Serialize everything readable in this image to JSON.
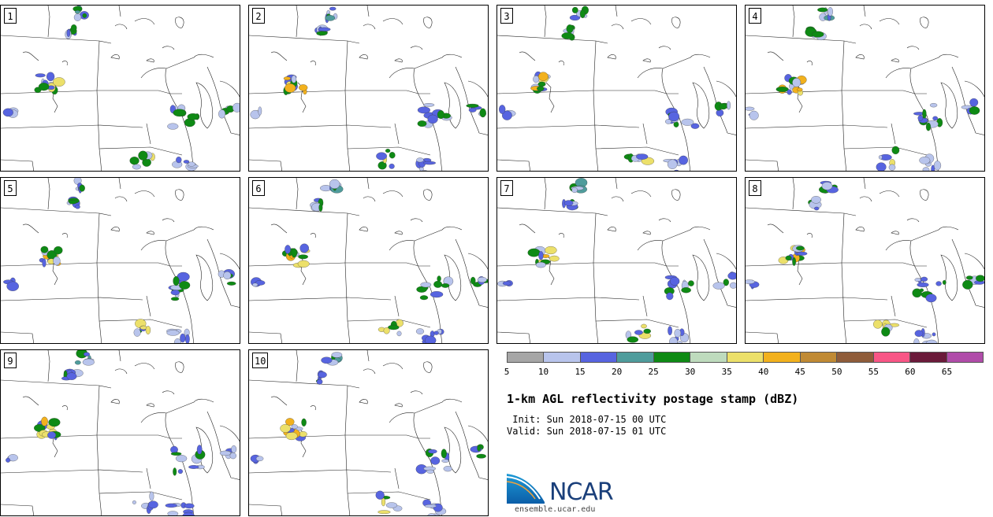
{
  "members": [
    {
      "label": "1"
    },
    {
      "label": "2"
    },
    {
      "label": "3"
    },
    {
      "label": "4"
    },
    {
      "label": "5"
    },
    {
      "label": "6"
    },
    {
      "label": "7"
    },
    {
      "label": "8"
    },
    {
      "label": "9"
    },
    {
      "label": "10"
    }
  ],
  "colorbar": {
    "colors": [
      "#a6a6a6",
      "#b8c4ec",
      "#5764e0",
      "#4f9c9c",
      "#0e8a14",
      "#bedbbd",
      "#ece06a",
      "#f2b11d",
      "#c08a34",
      "#8f5c3a",
      "#f85686",
      "#6b1a3a",
      "#b04ca9"
    ],
    "tick_labels": [
      "5",
      "10",
      "15",
      "20",
      "25",
      "30",
      "35",
      "40",
      "45",
      "50",
      "55",
      "60",
      "65"
    ]
  },
  "title": "1-km AGL reflectivity postage stamp (dBZ)",
  "init_line": " Init: Sun 2018-07-15 00 UTC",
  "valid_line": "Valid: Sun 2018-07-15 01 UTC",
  "logo": {
    "text": "NCAR",
    "url": "ensemble.ucar.edu"
  }
}
